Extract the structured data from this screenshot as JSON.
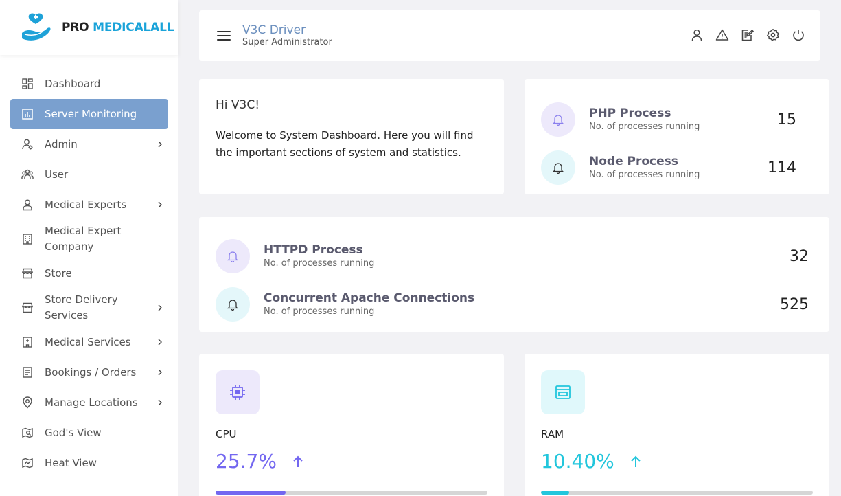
{
  "brand": {
    "pro": "PRO",
    "name": "MEDICALALL"
  },
  "sidebar": {
    "items": [
      {
        "label": "Dashboard",
        "icon": "dashboard-icon",
        "active": false,
        "has_children": false
      },
      {
        "label": "Server Monitoring",
        "icon": "chart-icon",
        "active": true,
        "has_children": false
      },
      {
        "label": "Admin",
        "icon": "admin-icon",
        "active": false,
        "has_children": true
      },
      {
        "label": "User",
        "icon": "users-icon",
        "active": false,
        "has_children": false
      },
      {
        "label": "Medical Experts",
        "icon": "person-icon",
        "active": false,
        "has_children": true
      },
      {
        "label": "Medical Expert Company",
        "icon": "building-icon",
        "active": false,
        "has_children": false
      },
      {
        "label": "Store",
        "icon": "store-icon",
        "active": false,
        "has_children": false
      },
      {
        "label": "Store Delivery Services",
        "icon": "store-icon",
        "active": false,
        "has_children": true
      },
      {
        "label": "Medical Services",
        "icon": "hospital-icon",
        "active": false,
        "has_children": true
      },
      {
        "label": "Bookings / Orders",
        "icon": "list-icon",
        "active": false,
        "has_children": true
      },
      {
        "label": "Manage Locations",
        "icon": "location-icon",
        "active": false,
        "has_children": true
      },
      {
        "label": "God's View",
        "icon": "map-search-icon",
        "active": false,
        "has_children": false
      },
      {
        "label": "Heat View",
        "icon": "heat-map-icon",
        "active": false,
        "has_children": false
      }
    ]
  },
  "header": {
    "user_name": "V3C Driver",
    "user_role": "Super Administrator",
    "icons": [
      "user-icon",
      "alert-icon",
      "edit-icon",
      "settings-icon",
      "power-icon"
    ]
  },
  "welcome": {
    "greeting": "Hi V3C!",
    "text": "Welcome to System Dashboard. Here you will find the important sections of system and statistics."
  },
  "processes_top": [
    {
      "name": "PHP Process",
      "sub": "No. of processes running",
      "value": "15",
      "color": "purple"
    },
    {
      "name": "Node Process",
      "sub": "No. of processes running",
      "value": "114",
      "color": "cyan"
    }
  ],
  "processes_bottom": [
    {
      "name": "HTTPD Process",
      "sub": "No. of processes running",
      "value": "32",
      "color": "purple"
    },
    {
      "name": "Concurrent Apache Connections",
      "sub": "No. of processes running",
      "value": "525",
      "color": "cyan"
    }
  ],
  "metrics": {
    "cpu": {
      "label": "CPU",
      "value": "25.7%",
      "progress": 25.7,
      "color": "#7367f0"
    },
    "ram": {
      "label": "RAM",
      "value": "10.40%",
      "progress": 10.4,
      "color": "#22c6dc"
    }
  }
}
